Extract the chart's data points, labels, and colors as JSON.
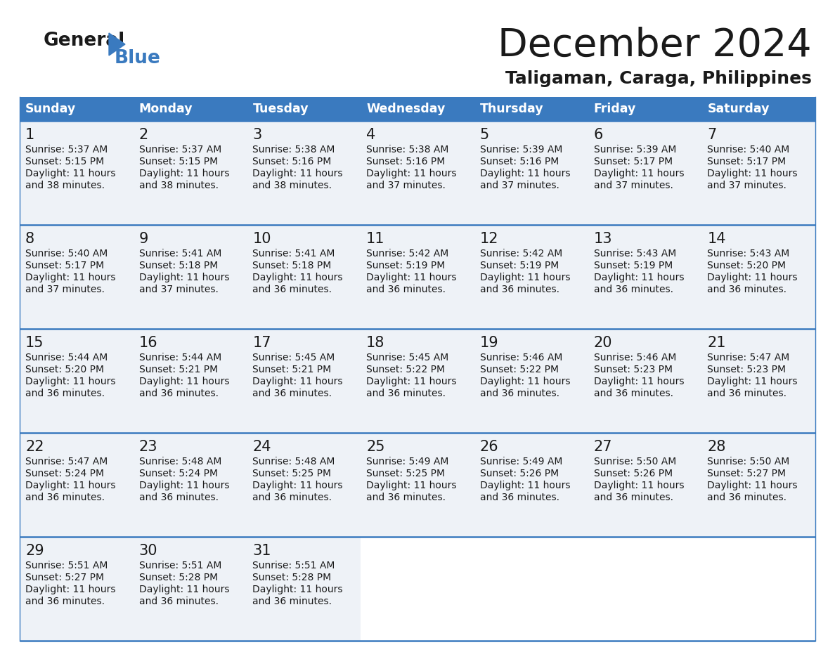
{
  "title": "December 2024",
  "subtitle": "Taligaman, Caraga, Philippines",
  "header_color": "#3a7abf",
  "header_text_color": "#ffffff",
  "border_color": "#3a7abf",
  "row_bg_color": "#eef2f7",
  "empty_bg_color": "#ffffff",
  "days_of_week": [
    "Sunday",
    "Monday",
    "Tuesday",
    "Wednesday",
    "Thursday",
    "Friday",
    "Saturday"
  ],
  "weeks": [
    [
      {
        "day": 1,
        "sunrise": "5:37 AM",
        "sunset": "5:15 PM",
        "daylight_line1": "Daylight: 11 hours",
        "daylight_line2": "and 38 minutes."
      },
      {
        "day": 2,
        "sunrise": "5:37 AM",
        "sunset": "5:15 PM",
        "daylight_line1": "Daylight: 11 hours",
        "daylight_line2": "and 38 minutes."
      },
      {
        "day": 3,
        "sunrise": "5:38 AM",
        "sunset": "5:16 PM",
        "daylight_line1": "Daylight: 11 hours",
        "daylight_line2": "and 38 minutes."
      },
      {
        "day": 4,
        "sunrise": "5:38 AM",
        "sunset": "5:16 PM",
        "daylight_line1": "Daylight: 11 hours",
        "daylight_line2": "and 37 minutes."
      },
      {
        "day": 5,
        "sunrise": "5:39 AM",
        "sunset": "5:16 PM",
        "daylight_line1": "Daylight: 11 hours",
        "daylight_line2": "and 37 minutes."
      },
      {
        "day": 6,
        "sunrise": "5:39 AM",
        "sunset": "5:17 PM",
        "daylight_line1": "Daylight: 11 hours",
        "daylight_line2": "and 37 minutes."
      },
      {
        "day": 7,
        "sunrise": "5:40 AM",
        "sunset": "5:17 PM",
        "daylight_line1": "Daylight: 11 hours",
        "daylight_line2": "and 37 minutes."
      }
    ],
    [
      {
        "day": 8,
        "sunrise": "5:40 AM",
        "sunset": "5:17 PM",
        "daylight_line1": "Daylight: 11 hours",
        "daylight_line2": "and 37 minutes."
      },
      {
        "day": 9,
        "sunrise": "5:41 AM",
        "sunset": "5:18 PM",
        "daylight_line1": "Daylight: 11 hours",
        "daylight_line2": "and 37 minutes."
      },
      {
        "day": 10,
        "sunrise": "5:41 AM",
        "sunset": "5:18 PM",
        "daylight_line1": "Daylight: 11 hours",
        "daylight_line2": "and 36 minutes."
      },
      {
        "day": 11,
        "sunrise": "5:42 AM",
        "sunset": "5:19 PM",
        "daylight_line1": "Daylight: 11 hours",
        "daylight_line2": "and 36 minutes."
      },
      {
        "day": 12,
        "sunrise": "5:42 AM",
        "sunset": "5:19 PM",
        "daylight_line1": "Daylight: 11 hours",
        "daylight_line2": "and 36 minutes."
      },
      {
        "day": 13,
        "sunrise": "5:43 AM",
        "sunset": "5:19 PM",
        "daylight_line1": "Daylight: 11 hours",
        "daylight_line2": "and 36 minutes."
      },
      {
        "day": 14,
        "sunrise": "5:43 AM",
        "sunset": "5:20 PM",
        "daylight_line1": "Daylight: 11 hours",
        "daylight_line2": "and 36 minutes."
      }
    ],
    [
      {
        "day": 15,
        "sunrise": "5:44 AM",
        "sunset": "5:20 PM",
        "daylight_line1": "Daylight: 11 hours",
        "daylight_line2": "and 36 minutes."
      },
      {
        "day": 16,
        "sunrise": "5:44 AM",
        "sunset": "5:21 PM",
        "daylight_line1": "Daylight: 11 hours",
        "daylight_line2": "and 36 minutes."
      },
      {
        "day": 17,
        "sunrise": "5:45 AM",
        "sunset": "5:21 PM",
        "daylight_line1": "Daylight: 11 hours",
        "daylight_line2": "and 36 minutes."
      },
      {
        "day": 18,
        "sunrise": "5:45 AM",
        "sunset": "5:22 PM",
        "daylight_line1": "Daylight: 11 hours",
        "daylight_line2": "and 36 minutes."
      },
      {
        "day": 19,
        "sunrise": "5:46 AM",
        "sunset": "5:22 PM",
        "daylight_line1": "Daylight: 11 hours",
        "daylight_line2": "and 36 minutes."
      },
      {
        "day": 20,
        "sunrise": "5:46 AM",
        "sunset": "5:23 PM",
        "daylight_line1": "Daylight: 11 hours",
        "daylight_line2": "and 36 minutes."
      },
      {
        "day": 21,
        "sunrise": "5:47 AM",
        "sunset": "5:23 PM",
        "daylight_line1": "Daylight: 11 hours",
        "daylight_line2": "and 36 minutes."
      }
    ],
    [
      {
        "day": 22,
        "sunrise": "5:47 AM",
        "sunset": "5:24 PM",
        "daylight_line1": "Daylight: 11 hours",
        "daylight_line2": "and 36 minutes."
      },
      {
        "day": 23,
        "sunrise": "5:48 AM",
        "sunset": "5:24 PM",
        "daylight_line1": "Daylight: 11 hours",
        "daylight_line2": "and 36 minutes."
      },
      {
        "day": 24,
        "sunrise": "5:48 AM",
        "sunset": "5:25 PM",
        "daylight_line1": "Daylight: 11 hours",
        "daylight_line2": "and 36 minutes."
      },
      {
        "day": 25,
        "sunrise": "5:49 AM",
        "sunset": "5:25 PM",
        "daylight_line1": "Daylight: 11 hours",
        "daylight_line2": "and 36 minutes."
      },
      {
        "day": 26,
        "sunrise": "5:49 AM",
        "sunset": "5:26 PM",
        "daylight_line1": "Daylight: 11 hours",
        "daylight_line2": "and 36 minutes."
      },
      {
        "day": 27,
        "sunrise": "5:50 AM",
        "sunset": "5:26 PM",
        "daylight_line1": "Daylight: 11 hours",
        "daylight_line2": "and 36 minutes."
      },
      {
        "day": 28,
        "sunrise": "5:50 AM",
        "sunset": "5:27 PM",
        "daylight_line1": "Daylight: 11 hours",
        "daylight_line2": "and 36 minutes."
      }
    ],
    [
      {
        "day": 29,
        "sunrise": "5:51 AM",
        "sunset": "5:27 PM",
        "daylight_line1": "Daylight: 11 hours",
        "daylight_line2": "and 36 minutes."
      },
      {
        "day": 30,
        "sunrise": "5:51 AM",
        "sunset": "5:28 PM",
        "daylight_line1": "Daylight: 11 hours",
        "daylight_line2": "and 36 minutes."
      },
      {
        "day": 31,
        "sunrise": "5:51 AM",
        "sunset": "5:28 PM",
        "daylight_line1": "Daylight: 11 hours",
        "daylight_line2": "and 36 minutes."
      },
      null,
      null,
      null,
      null
    ]
  ]
}
